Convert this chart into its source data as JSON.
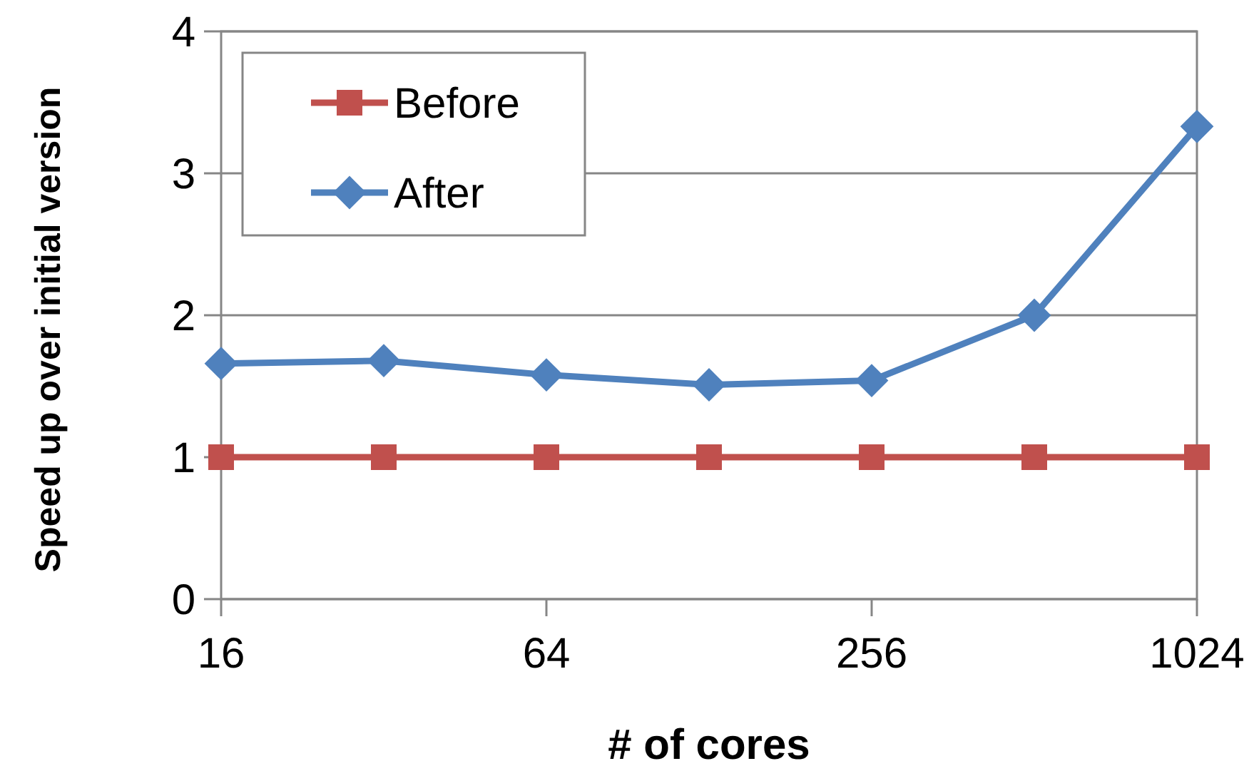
{
  "chart_data": {
    "type": "line",
    "xlabel": "# of cores",
    "ylabel": "Speed up over initial version",
    "x": [
      16,
      32,
      64,
      128,
      256,
      512,
      1024
    ],
    "series": [
      {
        "name": "Before",
        "color": "#c0504d",
        "marker": "square",
        "values": [
          1,
          1,
          1,
          1,
          1,
          1,
          1
        ]
      },
      {
        "name": "After",
        "color": "#4f81bd",
        "marker": "diamond",
        "values": [
          1.66,
          1.68,
          1.58,
          1.51,
          1.54,
          2.0,
          3.33
        ]
      }
    ],
    "log": "x",
    "xlim": [
      16,
      1024
    ],
    "xticks": [
      16,
      64,
      256,
      1024
    ],
    "ylim": [
      0,
      4
    ],
    "yticks": [
      0,
      1,
      2,
      3,
      4
    ],
    "grid": "y",
    "legend": "top left",
    "line_style": "solid"
  }
}
